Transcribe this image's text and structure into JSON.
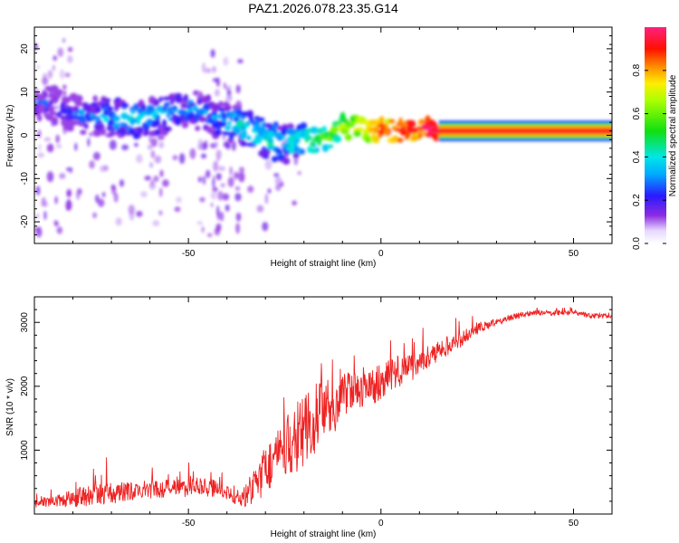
{
  "title": "PAZ1.2026.078.23.35.G14",
  "chart_data": [
    {
      "type": "heatmap",
      "name": "spectrogram",
      "xlabel": "Height of straight line (km)",
      "ylabel": "Frequency (Hz)",
      "xlim": [
        -90,
        60
      ],
      "ylim": [
        -25,
        25
      ],
      "xticks": [
        -50,
        0,
        50
      ],
      "xtick_labels": [
        "-50",
        "0",
        "50"
      ],
      "yticks": [
        -20,
        -10,
        0,
        10,
        20
      ],
      "ytick_labels": [
        "-20",
        "-10",
        "0",
        "10",
        "20"
      ],
      "ridge": {
        "x": [
          -90,
          -85,
          -80,
          -75,
          -70,
          -65,
          -60,
          -55,
          -50,
          -45,
          -40,
          -35,
          -30,
          -25,
          -20,
          -15,
          -10,
          -5,
          0,
          5,
          10,
          15,
          20,
          30,
          40,
          50,
          60
        ],
        "freq": [
          8,
          7,
          5,
          4.5,
          4,
          4,
          4,
          5,
          6,
          5,
          3,
          2,
          -1,
          -2,
          -1,
          -1,
          2,
          1.5,
          1,
          1,
          2,
          1,
          1,
          1,
          1,
          1,
          1
        ],
        "amplitude": [
          0.22,
          0.22,
          0.24,
          0.3,
          0.35,
          0.38,
          0.38,
          0.32,
          0.3,
          0.32,
          0.35,
          0.42,
          0.42,
          0.42,
          0.45,
          0.55,
          0.62,
          0.72,
          0.85,
          0.95,
          0.92,
          0.98,
          0.98,
          0.98,
          0.98,
          0.98,
          0.98
        ]
      },
      "colorbar": {
        "label": "Normalized spectral amplitude",
        "range": [
          0,
          1
        ],
        "ticks": [
          0.0,
          0.2,
          0.4,
          0.6,
          0.8
        ],
        "tick_labels": [
          "0.0",
          "0.2",
          "0.4",
          "0.6",
          "0.8"
        ],
        "colormap": "rainbow (white-violet-blue-cyan-green-yellow-red-magenta)"
      }
    },
    {
      "type": "line",
      "name": "snr",
      "xlabel": "Height of straight line (km)",
      "ylabel": "SNR (10 * v/v)",
      "xlim": [
        -90,
        60
      ],
      "ylim": [
        0,
        3400
      ],
      "xticks": [
        -50,
        0,
        50
      ],
      "xtick_labels": [
        "-50",
        "0",
        "50"
      ],
      "yticks": [
        1000,
        2000,
        3000
      ],
      "ytick_labels": [
        "1000",
        "2000",
        "3000"
      ],
      "color": "#ee2222",
      "series": [
        {
          "name": "SNR",
          "x": [
            -90,
            -85,
            -80,
            -75,
            -70,
            -65,
            -60,
            -55,
            -50,
            -45,
            -40,
            -37,
            -35,
            -32,
            -30,
            -27,
            -25,
            -22,
            -20,
            -17,
            -15,
            -12,
            -10,
            -7,
            -5,
            -2,
            0,
            3,
            5,
            8,
            10,
            15,
            20,
            25,
            30,
            35,
            40,
            45,
            50,
            55,
            60
          ],
          "values": [
            150,
            200,
            250,
            300,
            330,
            350,
            380,
            400,
            420,
            420,
            350,
            200,
            300,
            500,
            700,
            900,
            1000,
            1200,
            1300,
            1500,
            1600,
            1700,
            1800,
            1900,
            1950,
            2000,
            2100,
            2200,
            2250,
            2300,
            2400,
            2550,
            2700,
            2900,
            3000,
            3100,
            3150,
            3150,
            3150,
            3100,
            3100
          ],
          "noise_amplitude": [
            120,
            150,
            300,
            350,
            350,
            300,
            300,
            300,
            300,
            300,
            250,
            150,
            400,
            600,
            800,
            900,
            1000,
            1100,
            1200,
            1100,
            1000,
            900,
            800,
            700,
            700,
            600,
            600,
            500,
            500,
            450,
            400,
            300,
            250,
            150,
            120,
            100,
            80,
            80,
            80,
            80,
            80
          ]
        }
      ]
    }
  ]
}
